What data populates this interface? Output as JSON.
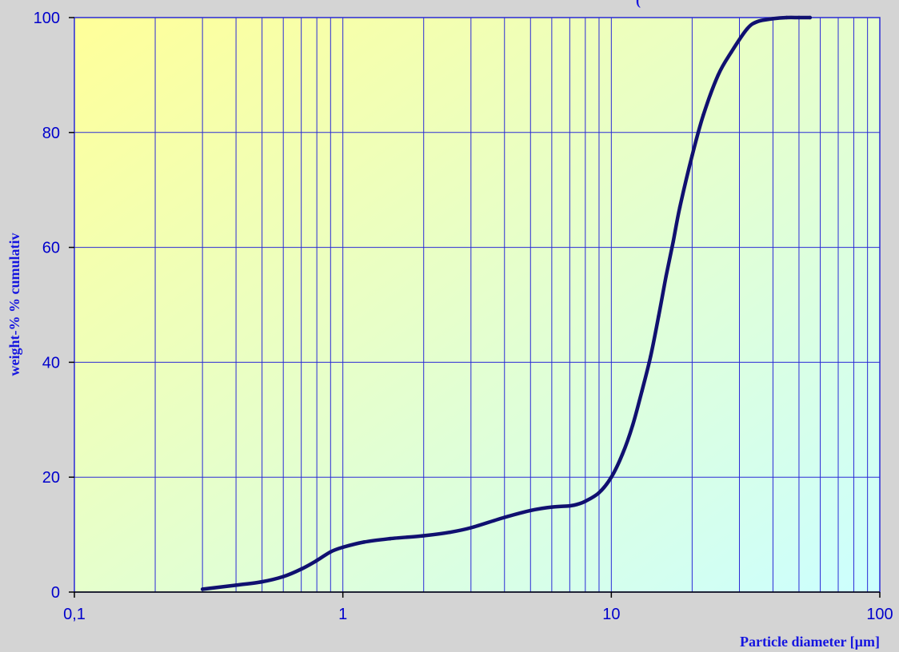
{
  "chart_data": {
    "type": "line",
    "title": "",
    "partial_title_text": "(",
    "xlabel": "Particle diameter [µm]",
    "ylabel": "weight-% % cumulativ",
    "x_scale": "log",
    "xlim": [
      0.1,
      100
    ],
    "ylim": [
      0,
      100
    ],
    "x_ticks": [
      0.1,
      1,
      10,
      100
    ],
    "x_tick_labels": [
      "0,1",
      "1",
      "10",
      "100"
    ],
    "y_ticks": [
      0,
      20,
      40,
      60,
      80,
      100
    ],
    "y_tick_labels": [
      "0",
      "20",
      "40",
      "60",
      "80",
      "100"
    ],
    "grid": true,
    "legend": "none",
    "colors": {
      "line": "#101070",
      "grid": "#2a2ad6",
      "label_text": "#0000cc",
      "background": "#d4d4d4",
      "plot_gradient_top_left": "#ffff99",
      "plot_gradient_bottom_right": "#ccffff"
    },
    "series": [
      {
        "x": [
          0.3,
          0.4,
          0.5,
          0.6,
          0.7,
          0.8,
          0.9,
          1.0,
          1.2,
          1.5,
          2.0,
          2.5,
          3.0,
          4.0,
          5.0,
          6.0,
          7.0,
          7.5,
          8.0,
          9.0,
          10.0,
          11.0,
          12.0,
          13.0,
          14.0,
          15.0,
          16.0,
          17.0,
          18.0,
          20.0,
          22.0,
          25.0,
          28.0,
          32.0,
          35.0,
          40.0,
          45.0,
          50.0,
          55.0
        ],
        "y": [
          0.5,
          1.2,
          1.8,
          2.7,
          4.0,
          5.5,
          7.0,
          7.8,
          8.7,
          9.3,
          9.8,
          10.4,
          11.2,
          13.0,
          14.2,
          14.8,
          15.0,
          15.3,
          15.8,
          17.3,
          20.0,
          24.0,
          29.0,
          35.0,
          41.0,
          48.0,
          55.0,
          61.0,
          67.0,
          76.0,
          83.0,
          90.0,
          94.0,
          98.0,
          99.3,
          99.8,
          100.0,
          100.0,
          100.0
        ]
      }
    ]
  }
}
